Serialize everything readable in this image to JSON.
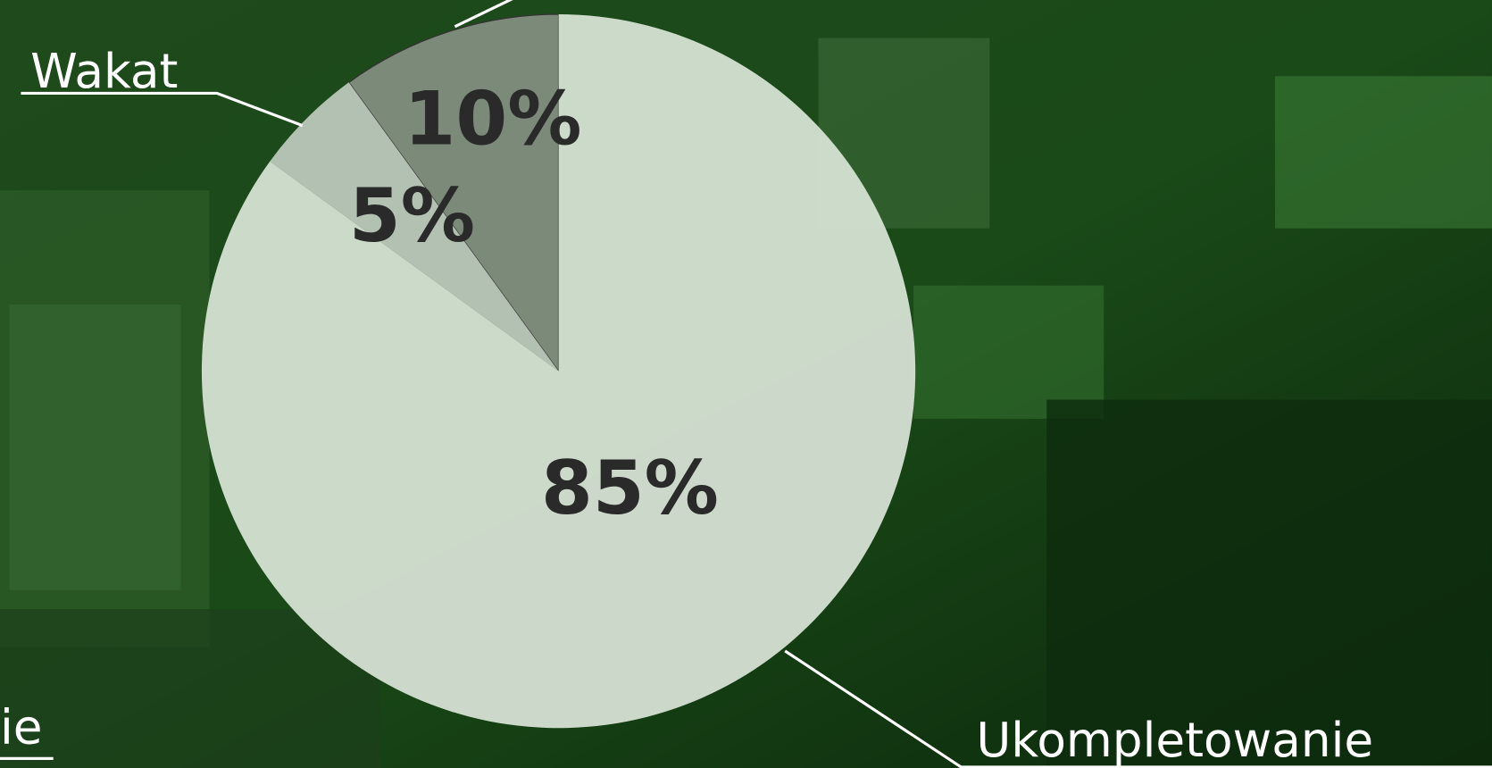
{
  "chart_data": {
    "type": "pie",
    "categories": [
      null,
      "Wakat",
      "Ukompletowanie"
    ],
    "values": [
      10,
      5,
      85
    ],
    "value_labels": [
      "10%",
      "5%",
      "85%"
    ],
    "colors": [
      "#828d80",
      "#bcc7ba",
      "#d6e1d4"
    ],
    "annotations": [
      "ie"
    ]
  }
}
